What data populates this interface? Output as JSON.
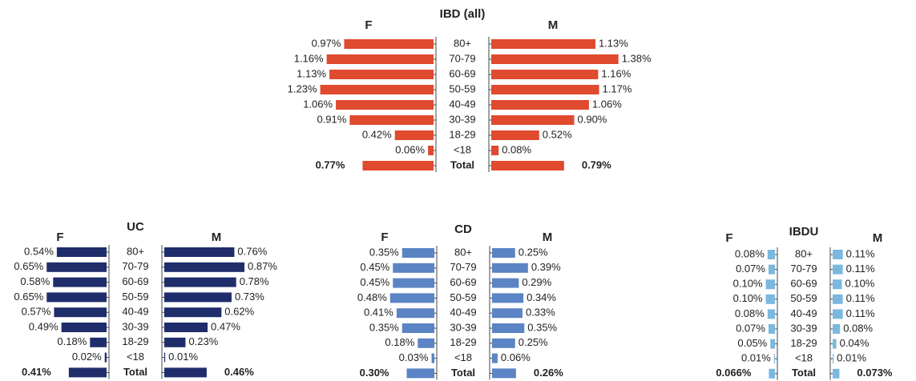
{
  "chart_data": [
    {
      "type": "butterfly",
      "title": "IBD (all)",
      "color": "#e04a2e",
      "categories": [
        "80+",
        "70-79",
        "60-69",
        "50-59",
        "40-49",
        "30-39",
        "18-29",
        "<18",
        "Total"
      ],
      "series": [
        {
          "name": "F",
          "values": [
            0.97,
            1.16,
            1.13,
            1.23,
            1.06,
            0.91,
            0.42,
            0.06,
            0.77
          ],
          "value_labels": [
            "0.97%",
            "1.16%",
            "1.13%",
            "1.23%",
            "1.06%",
            "0.91%",
            "0.42%",
            "0.06%",
            "0.77%"
          ]
        },
        {
          "name": "M",
          "values": [
            1.13,
            1.38,
            1.16,
            1.17,
            1.06,
            0.9,
            0.52,
            0.08,
            0.79
          ],
          "value_labels": [
            "1.13%",
            "1.38%",
            "1.16%",
            "1.17%",
            "1.06%",
            "0.90%",
            "0.52%",
            "0.08%",
            "0.79%"
          ]
        }
      ]
    },
    {
      "type": "butterfly",
      "title": "UC",
      "color": "#1f2d6b",
      "categories": [
        "80+",
        "70-79",
        "60-69",
        "50-59",
        "40-49",
        "30-39",
        "18-29",
        "<18",
        "Total"
      ],
      "series": [
        {
          "name": "F",
          "values": [
            0.54,
            0.65,
            0.58,
            0.65,
            0.57,
            0.49,
            0.18,
            0.02,
            0.41
          ],
          "value_labels": [
            "0.54%",
            "0.65%",
            "0.58%",
            "0.65%",
            "0.57%",
            "0.49%",
            "0.18%",
            "0.02%",
            "0.41%"
          ]
        },
        {
          "name": "M",
          "values": [
            0.76,
            0.87,
            0.78,
            0.73,
            0.62,
            0.47,
            0.23,
            0.01,
            0.46
          ],
          "value_labels": [
            "0.76%",
            "0.87%",
            "0.78%",
            "0.73%",
            "0.62%",
            "0.47%",
            "0.23%",
            "0.01%",
            "0.46%"
          ]
        }
      ]
    },
    {
      "type": "butterfly",
      "title": "CD",
      "color": "#5b84c4",
      "categories": [
        "80+",
        "70-79",
        "60-69",
        "50-59",
        "40-49",
        "30-39",
        "18-29",
        "<18",
        "Total"
      ],
      "series": [
        {
          "name": "F",
          "values": [
            0.35,
            0.45,
            0.45,
            0.48,
            0.41,
            0.35,
            0.18,
            0.03,
            0.3
          ],
          "value_labels": [
            "0.35%",
            "0.45%",
            "0.45%",
            "0.48%",
            "0.41%",
            "0.35%",
            "0.18%",
            "0.03%",
            "0.30%"
          ]
        },
        {
          "name": "M",
          "values": [
            0.25,
            0.39,
            0.29,
            0.34,
            0.33,
            0.35,
            0.25,
            0.06,
            0.26
          ],
          "value_labels": [
            "0.25%",
            "0.39%",
            "0.29%",
            "0.34%",
            "0.33%",
            "0.35%",
            "0.25%",
            "0.06%",
            "0.26%"
          ]
        }
      ]
    },
    {
      "type": "butterfly",
      "title": "IBDU",
      "color": "#7ab8e0",
      "categories": [
        "80+",
        "70-79",
        "60-69",
        "50-59",
        "40-49",
        "30-39",
        "18-29",
        "<18",
        "Total"
      ],
      "series": [
        {
          "name": "F",
          "values": [
            0.08,
            0.07,
            0.1,
            0.1,
            0.08,
            0.07,
            0.05,
            0.01,
            0.066
          ],
          "value_labels": [
            "0.08%",
            "0.07%",
            "0.10%",
            "0.10%",
            "0.08%",
            "0.07%",
            "0.05%",
            "0.01%",
            "0.066%"
          ]
        },
        {
          "name": "M",
          "values": [
            0.11,
            0.11,
            0.1,
            0.11,
            0.11,
            0.08,
            0.04,
            0.01,
            0.073
          ],
          "value_labels": [
            "0.11%",
            "0.11%",
            "0.10%",
            "0.11%",
            "0.11%",
            "0.08%",
            "0.04%",
            "0.01%",
            "0.073%"
          ]
        }
      ]
    }
  ]
}
